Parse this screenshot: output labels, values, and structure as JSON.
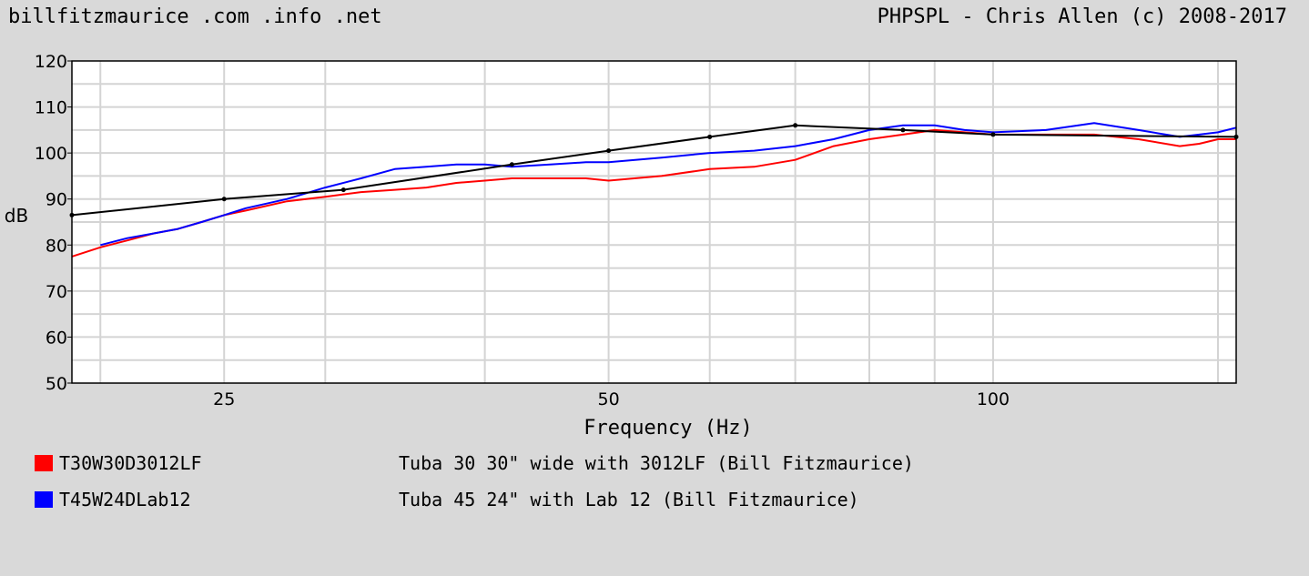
{
  "header": {
    "left": "billfitzmaurice .com .info .net",
    "right": "PHPSPL - Chris Allen (c) 2008-2017"
  },
  "chart_data": {
    "type": "line",
    "title": "",
    "xlabel": "Frequency (Hz)",
    "ylabel": "dB",
    "x_scale": "log",
    "xlim": [
      19,
      155
    ],
    "ylim": [
      50,
      120
    ],
    "x_ticks": [
      25,
      50,
      100
    ],
    "x_tick_labels": [
      "25",
      "50",
      "100"
    ],
    "y_ticks": [
      50,
      60,
      70,
      80,
      90,
      100,
      110,
      120
    ],
    "y_tick_labels": [
      "50",
      "60",
      "70",
      "80",
      "90",
      "100",
      "110",
      "120"
    ],
    "grid": true,
    "legend_position": "bottom",
    "series": [
      {
        "name": "T30W30D3012LF",
        "description": "Tuba 30 30\" wide with 3012LF (Bill Fitzmaurice)",
        "color": "#ff0000",
        "x": [
          19,
          20,
          21,
          22,
          23,
          24,
          25,
          26,
          28,
          30,
          32,
          34,
          36,
          38,
          40,
          42,
          45,
          48,
          50,
          55,
          60,
          65,
          70,
          75,
          80,
          85,
          90,
          95,
          100,
          110,
          120,
          130,
          140,
          145,
          150,
          155
        ],
        "y": [
          77.5,
          79.5,
          81,
          82.5,
          83.5,
          85,
          86.5,
          87.5,
          89.5,
          90.5,
          91.5,
          92,
          92.5,
          93.5,
          94,
          94.5,
          94.5,
          94.5,
          94,
          95,
          96.5,
          97,
          98.5,
          101.5,
          103,
          104,
          105,
          104.5,
          104,
          104,
          104,
          103,
          101.5,
          102,
          103,
          103
        ]
      },
      {
        "name": "T45W24DLab12",
        "description": "Tuba 45 24\" with Lab 12 (Bill Fitzmaurice)",
        "color": "#0000ff",
        "x": [
          20,
          21,
          22,
          23,
          24,
          25,
          26,
          28,
          30,
          32,
          34,
          36,
          38,
          40,
          42,
          45,
          48,
          50,
          55,
          60,
          65,
          70,
          75,
          80,
          85,
          90,
          95,
          100,
          110,
          120,
          130,
          140,
          145,
          150,
          155
        ],
        "y": [
          80,
          81.5,
          82.5,
          83.5,
          85,
          86.5,
          88,
          90,
          92.5,
          94.5,
          96.5,
          97,
          97.5,
          97.5,
          97,
          97.5,
          98,
          98,
          99,
          100,
          100.5,
          101.5,
          103,
          105,
          106,
          106,
          105,
          104.5,
          105,
          106.5,
          105,
          103.5,
          104,
          104.5,
          105.5
        ]
      },
      {
        "name": "",
        "color": "#000000",
        "markers": true,
        "x": [
          19,
          25,
          31,
          42,
          50,
          60,
          70,
          85,
          100,
          155
        ],
        "y": [
          86.5,
          90,
          92,
          97.5,
          100.5,
          103.5,
          106,
          105,
          104,
          103.5
        ]
      }
    ]
  }
}
